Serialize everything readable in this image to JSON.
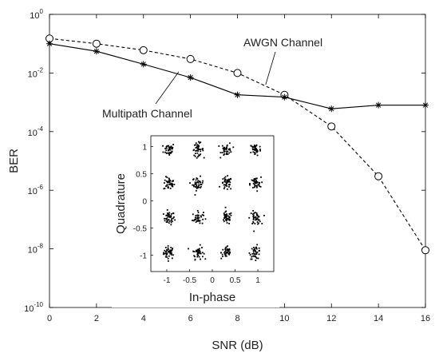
{
  "chart_data": [
    {
      "type": "line",
      "xlabel": "SNR (dB)",
      "ylabel": "BER",
      "x": [
        0,
        2,
        4,
        6,
        8,
        10,
        12,
        14,
        16
      ],
      "xticks": [
        "0",
        "2",
        "4",
        "6",
        "8",
        "10",
        "12",
        "14",
        "16"
      ],
      "xlim": [
        0,
        16
      ],
      "ylim": [
        1e-10,
        1
      ],
      "yscale": "log",
      "yticks": [
        {
          "base": "10",
          "exp": "0"
        },
        {
          "base": "10",
          "exp": "-2"
        },
        {
          "base": "10",
          "exp": "-4"
        },
        {
          "base": "10",
          "exp": "-6"
        },
        {
          "base": "10",
          "exp": "-8"
        },
        {
          "base": "10",
          "exp": "-10"
        }
      ],
      "grid": false,
      "series": [
        {
          "name": "AWGN Channel",
          "marker": "circle",
          "line_style": "dashed",
          "color": "#000000",
          "values": [
            0.15,
            0.1,
            0.06,
            0.03,
            0.01,
            0.0018,
            0.00015,
            3e-06,
            9e-09
          ]
        },
        {
          "name": "Multipath Channel",
          "marker": "asterisk",
          "line_style": "solid",
          "color": "#000000",
          "values": [
            0.1,
            0.055,
            0.02,
            0.007,
            0.0018,
            0.0015,
            0.0006,
            0.0008,
            0.0008
          ]
        }
      ]
    },
    {
      "type": "scatter",
      "xlabel": "In-phase",
      "ylabel": "Quadrature",
      "xlim": [
        -1.35,
        1.35
      ],
      "ylim": [
        -1.3,
        1.2
      ],
      "xticks": [
        "-1",
        "-0.5",
        "0",
        "0.5",
        "1"
      ],
      "yticks": [
        "1",
        "0.5",
        "0",
        "-0.5",
        "-1"
      ],
      "constellation_levels": [
        -0.9487,
        -0.3162,
        0.3162,
        0.9487
      ],
      "noise_spread": 0.06,
      "points_per_cluster": 40,
      "marker_color": "#000000"
    }
  ]
}
